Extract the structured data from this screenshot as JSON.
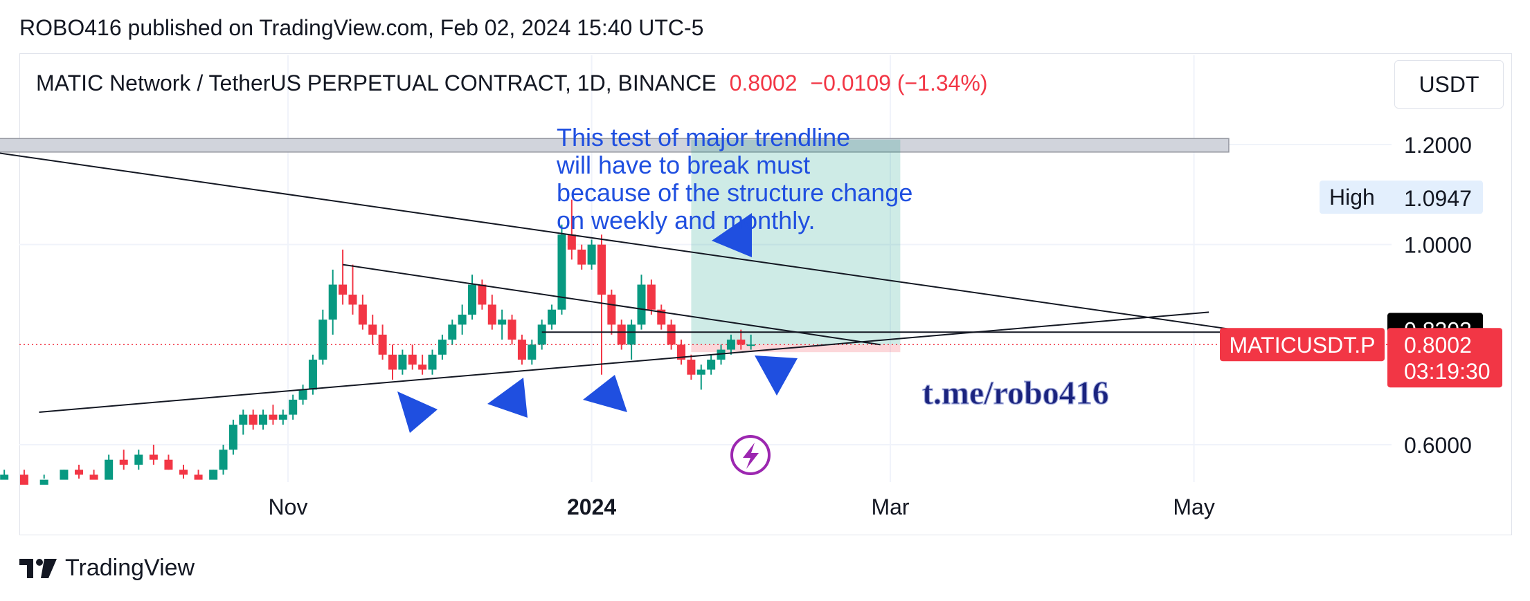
{
  "header": {
    "publisher_line": "ROBO416 published on TradingView.com, Feb 02, 2024 15:40 UTC-5"
  },
  "legend": {
    "symbol": "MATIC Network / TetherUS PERPETUAL CONTRACT, 1D, BINANCE",
    "price": "0.8002",
    "change": "−0.0109 (−1.34%)"
  },
  "currency_button": "USDT",
  "footer": {
    "brand": "TradingView"
  },
  "colors": {
    "up": "#089981",
    "down": "#f23645",
    "annotation": "#1f4fe0",
    "watermark": "#1a237e"
  },
  "chart_data": {
    "type": "candlestick",
    "symbol": "MATICUSDT.P",
    "interval": "1D",
    "y_ticks": [
      1.2,
      1.0,
      0.6
    ],
    "y_tick_labels": [
      "1.2000",
      "1.0000",
      "0.6000"
    ],
    "x_ticks": [
      "2023-11-01",
      "2024-01-01",
      "2024-03-01",
      "2024-05-01"
    ],
    "x_tick_labels": [
      "Nov",
      "2024",
      "Mar",
      "May"
    ],
    "high_label": {
      "label": "High",
      "value": "1.0947"
    },
    "price_labels": [
      {
        "value": "0.8303",
        "style": "black"
      },
      {
        "name": "MATICUSDT.P",
        "value": "0.8002",
        "countdown": "03:19:30",
        "style": "red"
      }
    ],
    "last_price": 0.8002,
    "candles": [
      [
        "2023-09-01",
        0.55,
        0.56,
        0.53,
        0.53
      ],
      [
        "2023-09-05",
        0.53,
        0.55,
        0.52,
        0.54
      ],
      [
        "2023-09-09",
        0.54,
        0.55,
        0.52,
        0.52
      ],
      [
        "2023-09-13",
        0.52,
        0.54,
        0.51,
        0.53
      ],
      [
        "2023-09-17",
        0.53,
        0.55,
        0.52,
        0.55
      ],
      [
        "2023-09-20",
        0.55,
        0.56,
        0.53,
        0.54
      ],
      [
        "2023-09-23",
        0.54,
        0.55,
        0.52,
        0.53
      ],
      [
        "2023-09-26",
        0.53,
        0.58,
        0.52,
        0.57
      ],
      [
        "2023-09-29",
        0.57,
        0.59,
        0.55,
        0.56
      ],
      [
        "2023-10-02",
        0.56,
        0.59,
        0.55,
        0.58
      ],
      [
        "2023-10-05",
        0.58,
        0.6,
        0.56,
        0.57
      ],
      [
        "2023-10-08",
        0.57,
        0.58,
        0.55,
        0.55
      ],
      [
        "2023-10-11",
        0.55,
        0.56,
        0.53,
        0.54
      ],
      [
        "2023-10-14",
        0.54,
        0.55,
        0.52,
        0.53
      ],
      [
        "2023-10-17",
        0.53,
        0.55,
        0.52,
        0.55
      ],
      [
        "2023-10-19",
        0.55,
        0.6,
        0.54,
        0.59
      ],
      [
        "2023-10-21",
        0.59,
        0.65,
        0.58,
        0.64
      ],
      [
        "2023-10-23",
        0.64,
        0.67,
        0.62,
        0.66
      ],
      [
        "2023-10-25",
        0.66,
        0.67,
        0.63,
        0.64
      ],
      [
        "2023-10-27",
        0.64,
        0.67,
        0.63,
        0.66
      ],
      [
        "2023-10-29",
        0.66,
        0.68,
        0.64,
        0.65
      ],
      [
        "2023-10-31",
        0.65,
        0.67,
        0.64,
        0.66
      ],
      [
        "2023-11-02",
        0.66,
        0.7,
        0.65,
        0.69
      ],
      [
        "2023-11-04",
        0.69,
        0.72,
        0.68,
        0.71
      ],
      [
        "2023-11-06",
        0.71,
        0.78,
        0.7,
        0.77
      ],
      [
        "2023-11-08",
        0.77,
        0.87,
        0.76,
        0.85
      ],
      [
        "2023-11-10",
        0.85,
        0.95,
        0.82,
        0.92
      ],
      [
        "2023-11-12",
        0.92,
        0.99,
        0.88,
        0.9
      ],
      [
        "2023-11-14",
        0.9,
        0.96,
        0.86,
        0.88
      ],
      [
        "2023-11-16",
        0.88,
        0.9,
        0.83,
        0.84
      ],
      [
        "2023-11-18",
        0.84,
        0.86,
        0.8,
        0.82
      ],
      [
        "2023-11-20",
        0.82,
        0.84,
        0.77,
        0.78
      ],
      [
        "2023-11-22",
        0.78,
        0.8,
        0.73,
        0.75
      ],
      [
        "2023-11-24",
        0.75,
        0.79,
        0.74,
        0.78
      ],
      [
        "2023-11-26",
        0.78,
        0.8,
        0.75,
        0.76
      ],
      [
        "2023-11-28",
        0.76,
        0.78,
        0.74,
        0.75
      ],
      [
        "2023-11-30",
        0.75,
        0.79,
        0.74,
        0.78
      ],
      [
        "2023-12-02",
        0.78,
        0.82,
        0.77,
        0.81
      ],
      [
        "2023-12-04",
        0.81,
        0.85,
        0.8,
        0.84
      ],
      [
        "2023-12-06",
        0.84,
        0.88,
        0.82,
        0.86
      ],
      [
        "2023-12-08",
        0.86,
        0.94,
        0.85,
        0.92
      ],
      [
        "2023-12-10",
        0.92,
        0.93,
        0.87,
        0.88
      ],
      [
        "2023-12-12",
        0.88,
        0.9,
        0.83,
        0.84
      ],
      [
        "2023-12-14",
        0.84,
        0.87,
        0.81,
        0.85
      ],
      [
        "2023-12-16",
        0.85,
        0.86,
        0.8,
        0.81
      ],
      [
        "2023-12-18",
        0.81,
        0.82,
        0.76,
        0.77
      ],
      [
        "2023-12-20",
        0.77,
        0.81,
        0.76,
        0.8
      ],
      [
        "2023-12-22",
        0.8,
        0.85,
        0.79,
        0.84
      ],
      [
        "2023-12-24",
        0.84,
        0.88,
        0.83,
        0.87
      ],
      [
        "2023-12-26",
        0.87,
        1.04,
        0.86,
        1.02
      ],
      [
        "2023-12-28",
        1.02,
        1.09,
        0.97,
        0.99
      ],
      [
        "2023-12-30",
        0.99,
        1.0,
        0.95,
        0.96
      ],
      [
        "2024-01-01",
        0.96,
        1.01,
        0.95,
        1.0
      ],
      [
        "2024-01-03",
        1.0,
        1.02,
        0.74,
        0.9
      ],
      [
        "2024-01-05",
        0.9,
        0.91,
        0.82,
        0.84
      ],
      [
        "2024-01-07",
        0.84,
        0.85,
        0.79,
        0.8
      ],
      [
        "2024-01-09",
        0.8,
        0.85,
        0.77,
        0.84
      ],
      [
        "2024-01-11",
        0.84,
        0.94,
        0.83,
        0.92
      ],
      [
        "2024-01-13",
        0.92,
        0.93,
        0.86,
        0.87
      ],
      [
        "2024-01-15",
        0.87,
        0.88,
        0.83,
        0.84
      ],
      [
        "2024-01-17",
        0.84,
        0.85,
        0.79,
        0.8
      ],
      [
        "2024-01-19",
        0.8,
        0.81,
        0.76,
        0.77
      ],
      [
        "2024-01-21",
        0.77,
        0.78,
        0.73,
        0.74
      ],
      [
        "2024-01-23",
        0.74,
        0.76,
        0.71,
        0.75
      ],
      [
        "2024-01-25",
        0.75,
        0.78,
        0.74,
        0.77
      ],
      [
        "2024-01-27",
        0.77,
        0.8,
        0.76,
        0.79
      ],
      [
        "2024-01-29",
        0.79,
        0.82,
        0.78,
        0.81
      ],
      [
        "2024-01-31",
        0.81,
        0.83,
        0.79,
        0.8
      ],
      [
        "2024-02-02",
        0.8,
        0.82,
        0.79,
        0.8002
      ]
    ],
    "drawings": {
      "upper_trendline": [
        [
          "2023-08-30",
          1.19
        ],
        [
          "2024-05-16",
          0.82
        ]
      ],
      "triangle_top": [
        [
          "2023-11-12",
          0.96
        ],
        [
          "2024-02-28",
          0.8
        ]
      ],
      "lower_trendline": [
        [
          "2023-09-12",
          0.665
        ],
        [
          "2024-05-04",
          0.865
        ]
      ],
      "horizontal_level": [
        [
          "2023-12-22",
          0.825
        ],
        [
          "2024-05-16",
          0.825
        ]
      ],
      "supply_zone": {
        "from": "2023-08-30",
        "to": "2024-05-08",
        "y1": 1.185,
        "y2": 1.212
      },
      "long_position": {
        "from": "2024-01-21",
        "to": "2024-03-03",
        "entry": 0.8,
        "target": 1.21,
        "stop": 0.785
      }
    },
    "annotation": "This test of major trendline will have to break must because of the structure change on weekly and monthly.",
    "annotation_lines": [
      "This test of major trendline",
      "will have to break must",
      "because of the structure change",
      "on weekly and monthly."
    ],
    "watermark": "t.me/robo416"
  }
}
